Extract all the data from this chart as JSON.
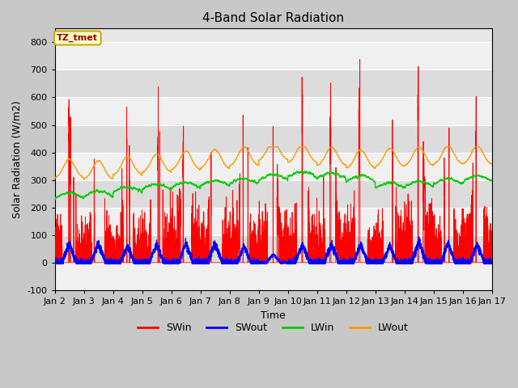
{
  "title": "4-Band Solar Radiation",
  "xlabel": "Time",
  "ylabel": "Solar Radiation (W/m2)",
  "ylim": [
    -100,
    850
  ],
  "yticks": [
    -100,
    0,
    100,
    200,
    300,
    400,
    500,
    600,
    700,
    800
  ],
  "xlim": [
    0,
    15
  ],
  "xtick_labels": [
    "Jan 2",
    "Jan 3",
    "Jan 4",
    "Jan 5",
    "Jan 6",
    "Jan 7",
    "Jan 8",
    "Jan 9",
    "Jan 10",
    "Jan 11",
    "Jan 12",
    "Jan 13",
    "Jan 14",
    "Jan 15",
    "Jan 16",
    "Jan 17"
  ],
  "xtick_positions": [
    0,
    1,
    2,
    3,
    4,
    5,
    6,
    7,
    8,
    9,
    10,
    11,
    12,
    13,
    14,
    15
  ],
  "colors": {
    "SWin": "#ff0000",
    "SWout": "#0000ff",
    "LWin": "#00cc00",
    "LWout": "#ff9900"
  },
  "annotation_text": "TZ_tmet",
  "annotation_bg": "#ffffcc",
  "annotation_border": "#ccaa00",
  "annotation_text_color": "#990000",
  "fig_bg": "#c8c8c8",
  "plot_bg": "#e8e8e8",
  "band_light": "#f0f0f0",
  "band_dark": "#dcdcdc",
  "grid_color": "#ffffff",
  "title_fontsize": 11,
  "axis_label_fontsize": 9,
  "tick_fontsize": 8,
  "n_days": 15,
  "points_per_day": 480,
  "SWin_peaks": [
    520,
    510,
    470,
    580,
    680,
    640,
    530,
    525,
    550,
    530,
    525,
    605,
    730,
    500,
    560
  ],
  "SWout_peaks": [
    70,
    70,
    60,
    65,
    70,
    70,
    60,
    30,
    65,
    65,
    65,
    60,
    75,
    70,
    65
  ],
  "LWin_base": [
    232,
    240,
    255,
    265,
    270,
    278,
    285,
    300,
    310,
    305,
    295,
    270,
    275,
    285,
    295
  ],
  "LWout_base": [
    305,
    300,
    315,
    325,
    335,
    340,
    350,
    370,
    360,
    350,
    340,
    345,
    350,
    355,
    355
  ]
}
